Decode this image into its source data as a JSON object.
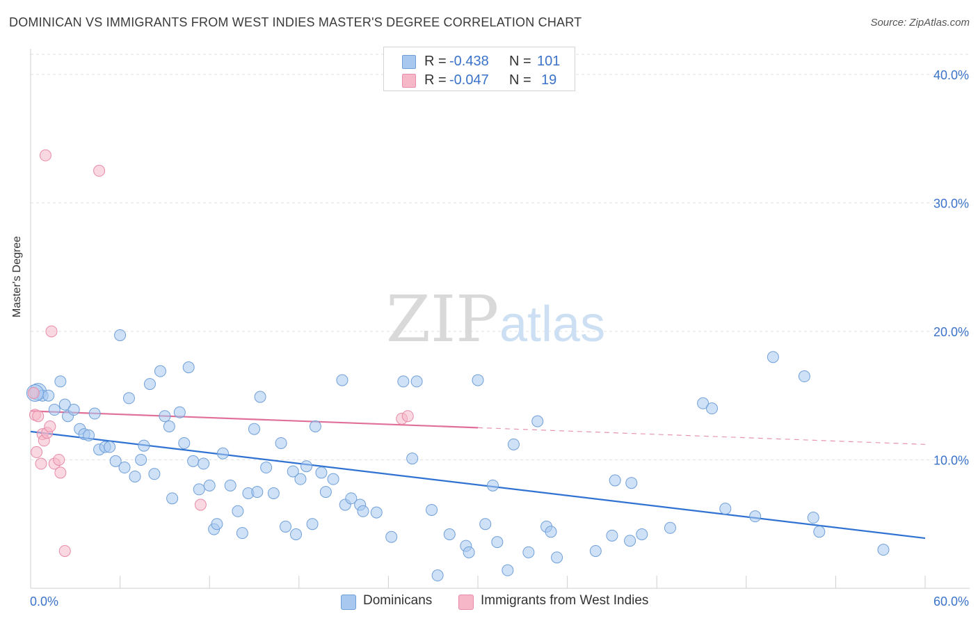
{
  "header": {
    "title": "DOMINICAN VS IMMIGRANTS FROM WEST INDIES MASTER'S DEGREE CORRELATION CHART",
    "source": "Source: ZipAtlas.com"
  },
  "watermark": {
    "zip": "ZIP",
    "atlas": "atlas"
  },
  "legend_top": [
    {
      "r_label": "R =",
      "r_value": "-0.438",
      "n_label": "N =",
      "n_value": "101",
      "color": "#a8c8f0"
    },
    {
      "r_label": "R =",
      "r_value": "-0.047",
      "n_label": "N =",
      "n_value": "19",
      "color": "#f6b8c9"
    }
  ],
  "legend_bottom": [
    {
      "label": "Dominicans",
      "color": "#a8c8f0"
    },
    {
      "label": "Immigrants from West Indies",
      "color": "#f6b8c9"
    }
  ],
  "chart_data": {
    "type": "scatter",
    "ylabel": "Master's Degree",
    "xlim": [
      0,
      60
    ],
    "ylim": [
      0,
      42
    ],
    "x_tick_labels": [
      {
        "value": 0,
        "label": "0.0%"
      },
      {
        "value": 60,
        "label": "60.0%"
      }
    ],
    "y_tick_labels": [
      {
        "value": 10,
        "label": "10.0%"
      },
      {
        "value": 20,
        "label": "20.0%"
      },
      {
        "value": 30,
        "label": "30.0%"
      },
      {
        "value": 40,
        "label": "40.0%"
      }
    ],
    "grid": true,
    "series": [
      {
        "name": "Dominicans",
        "color": "#a8c8f0",
        "stroke": "#6f9fd8",
        "trend_color": "#2f72d2",
        "trend": {
          "x0": 0,
          "y0": 12.2,
          "x1": 60,
          "y1": 3.9
        },
        "points": [
          [
            0.5,
            15.3
          ],
          [
            0.8,
            15.0
          ],
          [
            1.2,
            15.0
          ],
          [
            1.6,
            13.9
          ],
          [
            2.0,
            16.1
          ],
          [
            2.3,
            14.3
          ],
          [
            2.5,
            13.4
          ],
          [
            2.9,
            13.9
          ],
          [
            3.3,
            12.4
          ],
          [
            3.6,
            12.0
          ],
          [
            3.9,
            11.9
          ],
          [
            4.3,
            13.6
          ],
          [
            4.6,
            10.8
          ],
          [
            5.0,
            11.0
          ],
          [
            5.3,
            11.0
          ],
          [
            5.7,
            9.9
          ],
          [
            6.0,
            19.7
          ],
          [
            6.3,
            9.4
          ],
          [
            6.6,
            14.8
          ],
          [
            7.0,
            8.7
          ],
          [
            7.4,
            10.0
          ],
          [
            7.6,
            11.1
          ],
          [
            8.0,
            15.9
          ],
          [
            8.3,
            8.9
          ],
          [
            8.7,
            16.9
          ],
          [
            9.0,
            13.4
          ],
          [
            9.3,
            12.6
          ],
          [
            9.5,
            7.0
          ],
          [
            10.0,
            13.7
          ],
          [
            10.3,
            11.3
          ],
          [
            10.6,
            17.2
          ],
          [
            10.9,
            9.9
          ],
          [
            11.3,
            7.7
          ],
          [
            11.6,
            9.7
          ],
          [
            12.0,
            8.0
          ],
          [
            12.3,
            4.6
          ],
          [
            12.5,
            5.0
          ],
          [
            12.9,
            10.5
          ],
          [
            13.4,
            8.0
          ],
          [
            13.9,
            6.0
          ],
          [
            14.2,
            4.3
          ],
          [
            14.6,
            7.4
          ],
          [
            15.0,
            12.4
          ],
          [
            15.2,
            7.5
          ],
          [
            15.4,
            14.9
          ],
          [
            15.8,
            9.4
          ],
          [
            16.3,
            7.4
          ],
          [
            16.8,
            11.3
          ],
          [
            17.1,
            4.8
          ],
          [
            17.6,
            9.1
          ],
          [
            17.8,
            4.2
          ],
          [
            18.1,
            8.5
          ],
          [
            18.5,
            9.5
          ],
          [
            18.9,
            5.0
          ],
          [
            19.1,
            12.6
          ],
          [
            19.5,
            9.0
          ],
          [
            19.8,
            7.5
          ],
          [
            20.3,
            8.5
          ],
          [
            20.9,
            16.2
          ],
          [
            21.1,
            6.5
          ],
          [
            21.5,
            7.0
          ],
          [
            22.1,
            6.5
          ],
          [
            22.3,
            6.0
          ],
          [
            23.2,
            5.9
          ],
          [
            24.2,
            4.0
          ],
          [
            25.0,
            16.1
          ],
          [
            25.6,
            10.1
          ],
          [
            25.9,
            16.1
          ],
          [
            26.9,
            6.1
          ],
          [
            27.3,
            1.0
          ],
          [
            28.1,
            4.2
          ],
          [
            29.2,
            3.3
          ],
          [
            29.4,
            2.8
          ],
          [
            30.0,
            16.2
          ],
          [
            30.5,
            5.0
          ],
          [
            31.0,
            8.0
          ],
          [
            31.3,
            3.6
          ],
          [
            32.0,
            1.4
          ],
          [
            32.4,
            11.2
          ],
          [
            33.4,
            2.8
          ],
          [
            34.0,
            13.0
          ],
          [
            34.6,
            4.8
          ],
          [
            34.9,
            4.4
          ],
          [
            35.3,
            2.4
          ],
          [
            37.9,
            2.9
          ],
          [
            39.0,
            4.1
          ],
          [
            39.2,
            8.4
          ],
          [
            40.2,
            3.7
          ],
          [
            40.3,
            8.2
          ],
          [
            41.0,
            4.2
          ],
          [
            42.9,
            4.7
          ],
          [
            45.1,
            14.4
          ],
          [
            45.7,
            14.0
          ],
          [
            46.6,
            6.2
          ],
          [
            48.6,
            5.6
          ],
          [
            49.8,
            18.0
          ],
          [
            51.9,
            16.5
          ],
          [
            52.5,
            5.5
          ],
          [
            52.9,
            4.4
          ],
          [
            57.2,
            3.0
          ],
          [
            0.3,
            15.2
          ]
        ]
      },
      {
        "name": "Immigrants from West Indies",
        "color": "#f6b8c9",
        "stroke": "#e88aa8",
        "trend_color": "#e0709a",
        "trend": {
          "x0": 0,
          "y0": 13.8,
          "x1": 30.0,
          "y1": 12.5
        },
        "trend_ext": {
          "x0": 30.0,
          "y0": 12.5,
          "x1": 60,
          "y1": 11.2
        },
        "points": [
          [
            0.2,
            15.2
          ],
          [
            0.3,
            13.5
          ],
          [
            0.4,
            10.6
          ],
          [
            0.5,
            13.4
          ],
          [
            0.7,
            9.7
          ],
          [
            0.8,
            12.0
          ],
          [
            0.9,
            11.5
          ],
          [
            1.0,
            33.7
          ],
          [
            1.1,
            12.1
          ],
          [
            1.3,
            12.6
          ],
          [
            1.4,
            20.0
          ],
          [
            1.6,
            9.7
          ],
          [
            1.9,
            10.0
          ],
          [
            2.0,
            9.0
          ],
          [
            2.3,
            2.9
          ],
          [
            4.6,
            32.5
          ],
          [
            11.4,
            6.5
          ],
          [
            24.9,
            13.2
          ],
          [
            25.3,
            13.4
          ]
        ]
      }
    ]
  }
}
